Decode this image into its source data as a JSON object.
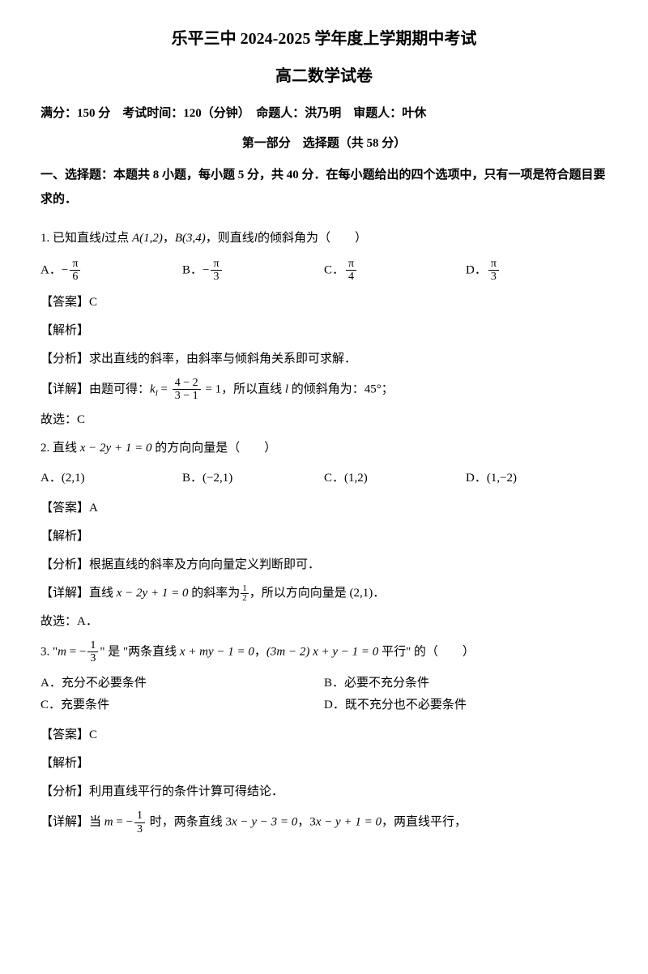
{
  "header": {
    "title": "乐平三中 2024-2025 学年度上学期期中考试",
    "subtitle": "高二数学试卷",
    "meta": "满分：150 分　考试时间：120（分钟）　命题人：洪乃明　审题人：叶休",
    "section_title": "第一部分　选择题（共 58 分）",
    "section_intro": "一、选择题：本题共 8 小题，每小题 5 分，共 40 分．在每小题给出的四个选项中，只有一项是符合题目要求的．"
  },
  "q1": {
    "prefix": "1. 已知直线",
    "mid1": "过点 ",
    "point_a": "A(1,2)",
    "comma": "，",
    "point_b": "B(3,4)",
    "suffix": "，则直线",
    "end": "的倾斜角为（　　）",
    "opt_a_label": "A．",
    "opt_a_neg": "−",
    "opt_a_num": "π",
    "opt_a_den": "6",
    "opt_b_label": "B．",
    "opt_b_neg": "−",
    "opt_b_num": "π",
    "opt_b_den": "3",
    "opt_c_label": "C．",
    "opt_c_num": "π",
    "opt_c_den": "4",
    "opt_d_label": "D．",
    "opt_d_num": "π",
    "opt_d_den": "3",
    "answer": "【答案】C",
    "jiexi": "【解析】",
    "fenxi": "【分析】求出直线的斜率，由斜率与倾斜角关系即可求解．",
    "xiangjie_pre": "【详解】由题可得：",
    "k_label": "k",
    "k_sub": "l",
    "eq": " = ",
    "calc_num": "4 − 2",
    "calc_den": "3 − 1",
    "eq_result": " = 1，所以直线 ",
    "l_var": "l",
    "xiangjie_post": " 的倾斜角为：45°；",
    "guxuan": "故选：C"
  },
  "q2": {
    "text_pre": "2. 直线 ",
    "eq": "x − 2y + 1 = 0",
    "text_post": " 的方向向量是（　　）",
    "opt_a": "A．(2,1)",
    "opt_b": "B．(−2,1)",
    "opt_c": "C．(1,2)",
    "opt_d": "D．(1,−2)",
    "answer": "【答案】A",
    "jiexi": "【解析】",
    "fenxi": "【分析】根据直线的斜率及方向向量定义判断即可．",
    "xiangjie_pre": "【详解】直线 ",
    "xiangjie_eq": "x − 2y + 1 = 0",
    "xiangjie_mid": " 的斜率为",
    "half_num": "1",
    "half_den": "2",
    "xiangjie_post": "，所以方向向量是 (2,1)．",
    "guxuan": "故选：A．"
  },
  "q3": {
    "text_pre": "3. \"",
    "m_var": "m",
    "eq_neg": " = −",
    "frac_num": "1",
    "frac_den": "3",
    "text_mid": "\" 是 \"两条直线 ",
    "line1": "x + my − 1 = 0",
    "comma": "，",
    "line2": "(3m − 2) x + y − 1 = 0",
    "text_post": " 平行\" 的（　　）",
    "opt_a": "A．充分不必要条件",
    "opt_b": "B．必要不充分条件",
    "opt_c": "C．充要条件",
    "opt_d": "D．既不充分也不必要条件",
    "answer": "【答案】C",
    "jiexi": "【解析】",
    "fenxi": "【分析】利用直线平行的条件计算可得结论．",
    "xiangjie_pre": "【详解】当 ",
    "m_var2": "m",
    "eq_neg2": " = −",
    "frac2_num": "1",
    "frac2_den": "3",
    "xiangjie_mid": " 时，两条直线 3",
    "x_var": "x",
    "minus_y": " − y − 3 = 0",
    "comma2": "，",
    "line3_pre": "3",
    "x_var2": "x",
    "line3_post": " − y + 1 = 0",
    "xiangjie_post": "，两直线平行，"
  }
}
